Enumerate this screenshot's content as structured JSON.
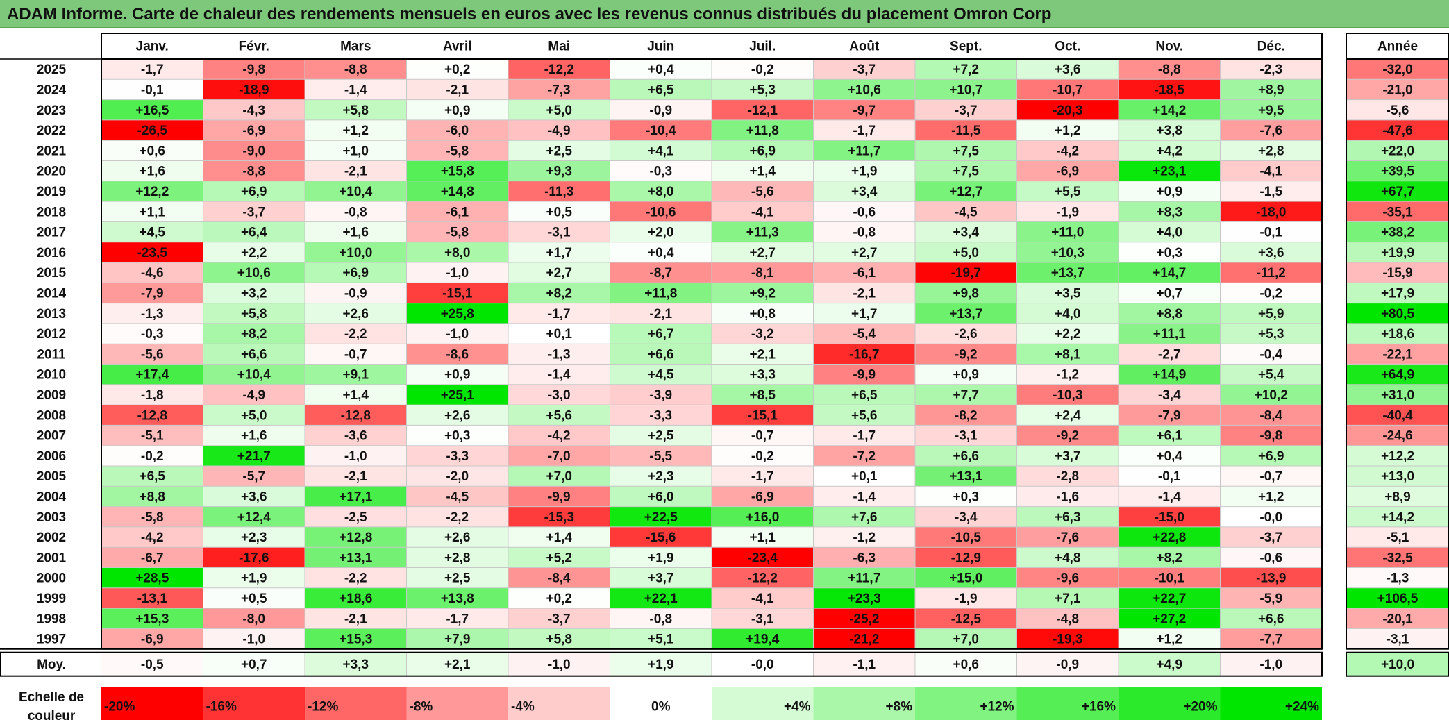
{
  "title": "ADAM Informe. Carte de chaleur des rendements mensuels en euros avec les revenus connus distribués du placement Omron Corp",
  "chart_data": {
    "type": "heatmap",
    "months": [
      "Janv.",
      "Févr.",
      "Mars",
      "Avril",
      "Mai",
      "Juin",
      "Juil.",
      "Août",
      "Sept.",
      "Oct.",
      "Nov.",
      "Déc."
    ],
    "year_header": "Année",
    "avg_label": "Moy.",
    "rows": [
      {
        "year": "2025",
        "values": [
          "-1,7",
          "-9,8",
          "-8,8",
          "+0,2",
          "-12,2",
          "+0,4",
          "-0,2",
          "-3,7",
          "+7,2",
          "+3,6",
          "-8,8",
          "-2,3"
        ],
        "annual": "-32,0"
      },
      {
        "year": "2024",
        "values": [
          "-0,1",
          "-18,9",
          "-1,4",
          "-2,1",
          "-7,3",
          "+6,5",
          "+5,3",
          "+10,6",
          "+10,7",
          "-10,7",
          "-18,5",
          "+8,9"
        ],
        "annual": "-21,0"
      },
      {
        "year": "2023",
        "values": [
          "+16,5",
          "-4,3",
          "+5,8",
          "+0,9",
          "+5,0",
          "-0,9",
          "-12,1",
          "-9,7",
          "-3,7",
          "-20,3",
          "+14,2",
          "+9,5"
        ],
        "annual": "-5,6"
      },
      {
        "year": "2022",
        "values": [
          "-26,5",
          "-6,9",
          "+1,2",
          "-6,0",
          "-4,9",
          "-10,4",
          "+11,8",
          "-1,7",
          "-11,5",
          "+1,2",
          "+3,8",
          "-7,6"
        ],
        "annual": "-47,6"
      },
      {
        "year": "2021",
        "values": [
          "+0,6",
          "-9,0",
          "+1,0",
          "-5,8",
          "+2,5",
          "+4,1",
          "+6,9",
          "+11,7",
          "+7,5",
          "-4,2",
          "+4,2",
          "+2,8"
        ],
        "annual": "+22,0"
      },
      {
        "year": "2020",
        "values": [
          "+1,6",
          "-8,8",
          "-2,1",
          "+15,8",
          "+9,3",
          "-0,3",
          "+1,4",
          "+1,9",
          "+7,5",
          "-6,9",
          "+23,1",
          "-4,1"
        ],
        "annual": "+39,5"
      },
      {
        "year": "2019",
        "values": [
          "+12,2",
          "+6,9",
          "+10,4",
          "+14,8",
          "-11,3",
          "+8,0",
          "-5,6",
          "+3,4",
          "+12,7",
          "+5,5",
          "+0,9",
          "-1,5"
        ],
        "annual": "+67,7"
      },
      {
        "year": "2018",
        "values": [
          "+1,1",
          "-3,7",
          "-0,8",
          "-6,1",
          "+0,5",
          "-10,6",
          "-4,1",
          "-0,6",
          "-4,5",
          "-1,9",
          "+8,3",
          "-18,0"
        ],
        "annual": "-35,1"
      },
      {
        "year": "2017",
        "values": [
          "+4,5",
          "+6,4",
          "+1,6",
          "-5,8",
          "-3,1",
          "+2,0",
          "+11,3",
          "-0,8",
          "+3,4",
          "+11,0",
          "+4,0",
          "-0,1"
        ],
        "annual": "+38,2"
      },
      {
        "year": "2016",
        "values": [
          "-23,5",
          "+2,2",
          "+10,0",
          "+8,0",
          "+1,7",
          "+0,4",
          "+2,7",
          "+2,7",
          "+5,0",
          "+10,3",
          "+0,3",
          "+3,6"
        ],
        "annual": "+19,9"
      },
      {
        "year": "2015",
        "values": [
          "-4,6",
          "+10,6",
          "+6,9",
          "-1,0",
          "+2,7",
          "-8,7",
          "-8,1",
          "-6,1",
          "-19,7",
          "+13,7",
          "+14,7",
          "-11,2"
        ],
        "annual": "-15,9"
      },
      {
        "year": "2014",
        "values": [
          "-7,9",
          "+3,2",
          "-0,9",
          "-15,1",
          "+8,2",
          "+11,8",
          "+9,2",
          "-2,1",
          "+9,8",
          "+3,5",
          "+0,7",
          "-0,2"
        ],
        "annual": "+17,9"
      },
      {
        "year": "2013",
        "values": [
          "-1,3",
          "+5,8",
          "+2,6",
          "+25,8",
          "-1,7",
          "-2,1",
          "+0,8",
          "+1,7",
          "+13,7",
          "+4,0",
          "+8,8",
          "+5,9"
        ],
        "annual": "+80,5"
      },
      {
        "year": "2012",
        "values": [
          "-0,3",
          "+8,2",
          "-2,2",
          "-1,0",
          "+0,1",
          "+6,7",
          "-3,2",
          "-5,4",
          "-2,6",
          "+2,2",
          "+11,1",
          "+5,3"
        ],
        "annual": "+18,6"
      },
      {
        "year": "2011",
        "values": [
          "-5,6",
          "+6,6",
          "-0,7",
          "-8,6",
          "-1,3",
          "+6,6",
          "+2,1",
          "-16,7",
          "-9,2",
          "+8,1",
          "-2,7",
          "-0,4"
        ],
        "annual": "-22,1"
      },
      {
        "year": "2010",
        "values": [
          "+17,4",
          "+10,4",
          "+9,1",
          "+0,9",
          "-1,4",
          "+4,5",
          "+3,3",
          "-9,9",
          "+0,9",
          "-1,2",
          "+14,9",
          "+5,4"
        ],
        "annual": "+64,9"
      },
      {
        "year": "2009",
        "values": [
          "-1,8",
          "-4,9",
          "+1,4",
          "+25,1",
          "-3,0",
          "-3,9",
          "+8,5",
          "+6,5",
          "+7,7",
          "-10,3",
          "-3,4",
          "+10,2"
        ],
        "annual": "+31,0"
      },
      {
        "year": "2008",
        "values": [
          "-12,8",
          "+5,0",
          "-12,8",
          "+2,6",
          "+5,6",
          "-3,3",
          "-15,1",
          "+5,6",
          "-8,2",
          "+2,4",
          "-7,9",
          "-8,4"
        ],
        "annual": "-40,4"
      },
      {
        "year": "2007",
        "values": [
          "-5,1",
          "+1,6",
          "-3,6",
          "+0,3",
          "-4,2",
          "+2,5",
          "-0,7",
          "-1,7",
          "-3,1",
          "-9,2",
          "+6,1",
          "-9,8"
        ],
        "annual": "-24,6"
      },
      {
        "year": "2006",
        "values": [
          "-0,2",
          "+21,7",
          "-1,0",
          "-3,3",
          "-7,0",
          "-5,5",
          "-0,2",
          "-7,2",
          "+6,6",
          "+3,7",
          "+0,4",
          "+6,9"
        ],
        "annual": "+12,2"
      },
      {
        "year": "2005",
        "values": [
          "+6,5",
          "-5,7",
          "-2,1",
          "-2,0",
          "+7,0",
          "+2,3",
          "-1,7",
          "+0,1",
          "+13,1",
          "-2,8",
          "-0,1",
          "-0,7"
        ],
        "annual": "+13,0"
      },
      {
        "year": "2004",
        "values": [
          "+8,8",
          "+3,6",
          "+17,1",
          "-4,5",
          "-9,9",
          "+6,0",
          "-6,9",
          "-1,4",
          "+0,3",
          "-1,6",
          "-1,4",
          "+1,2"
        ],
        "annual": "+8,9"
      },
      {
        "year": "2003",
        "values": [
          "-5,8",
          "+12,4",
          "-2,5",
          "-2,2",
          "-15,3",
          "+22,5",
          "+16,0",
          "+7,6",
          "-3,4",
          "+6,3",
          "-15,0",
          "-0,0"
        ],
        "annual": "+14,2"
      },
      {
        "year": "2002",
        "values": [
          "-4,2",
          "+2,3",
          "+12,8",
          "+2,6",
          "+1,4",
          "-15,6",
          "+1,1",
          "-1,2",
          "-10,5",
          "-7,6",
          "+22,8",
          "-3,7"
        ],
        "annual": "-5,1"
      },
      {
        "year": "2001",
        "values": [
          "-6,7",
          "-17,6",
          "+13,1",
          "+2,8",
          "+5,2",
          "+1,9",
          "-23,4",
          "-6,3",
          "-12,9",
          "+4,8",
          "+8,2",
          "-0,6"
        ],
        "annual": "-32,5"
      },
      {
        "year": "2000",
        "values": [
          "+28,5",
          "+1,9",
          "-2,2",
          "+2,5",
          "-8,4",
          "+3,7",
          "-12,2",
          "+11,7",
          "+15,0",
          "-9,6",
          "-10,1",
          "-13,9"
        ],
        "annual": "-1,3"
      },
      {
        "year": "1999",
        "values": [
          "-13,1",
          "+0,5",
          "+18,6",
          "+13,8",
          "+0,2",
          "+22,1",
          "-4,1",
          "+23,3",
          "-1,9",
          "+7,1",
          "+22,7",
          "-5,9"
        ],
        "annual": "+106,5"
      },
      {
        "year": "1998",
        "values": [
          "+15,3",
          "-8,0",
          "-2,1",
          "-1,7",
          "-3,7",
          "-0,8",
          "-3,1",
          "-25,2",
          "-12,5",
          "-4,8",
          "+27,2",
          "+6,6"
        ],
        "annual": "-20,1"
      },
      {
        "year": "1997",
        "values": [
          "-6,9",
          "-1,0",
          "+15,3",
          "+7,9",
          "+5,8",
          "+5,1",
          "+19,4",
          "-21,2",
          "+7,0",
          "-19,3",
          "+1,2",
          "-7,7"
        ],
        "annual": "-3,1"
      }
    ],
    "average": {
      "values": [
        "-0,5",
        "+0,7",
        "+3,3",
        "+2,1",
        "-1,0",
        "+1,9",
        "-0,0",
        "-1,1",
        "+0,6",
        "-0,9",
        "+4,9",
        "-1,0"
      ],
      "annual": "+10,0"
    },
    "scale_title": [
      "Echelle de",
      "couleur"
    ],
    "scale": [
      "-20%",
      "-16%",
      "-12%",
      "-8%",
      "-4%",
      "0%",
      "+4%",
      "+8%",
      "+12%",
      "+16%",
      "+20%",
      "+24%"
    ],
    "colors": {
      "neg_strong": "#ff0000",
      "pos_strong": "#00e600",
      "neutral": "#ffffff",
      "title_bg": "#7dc87a"
    }
  }
}
